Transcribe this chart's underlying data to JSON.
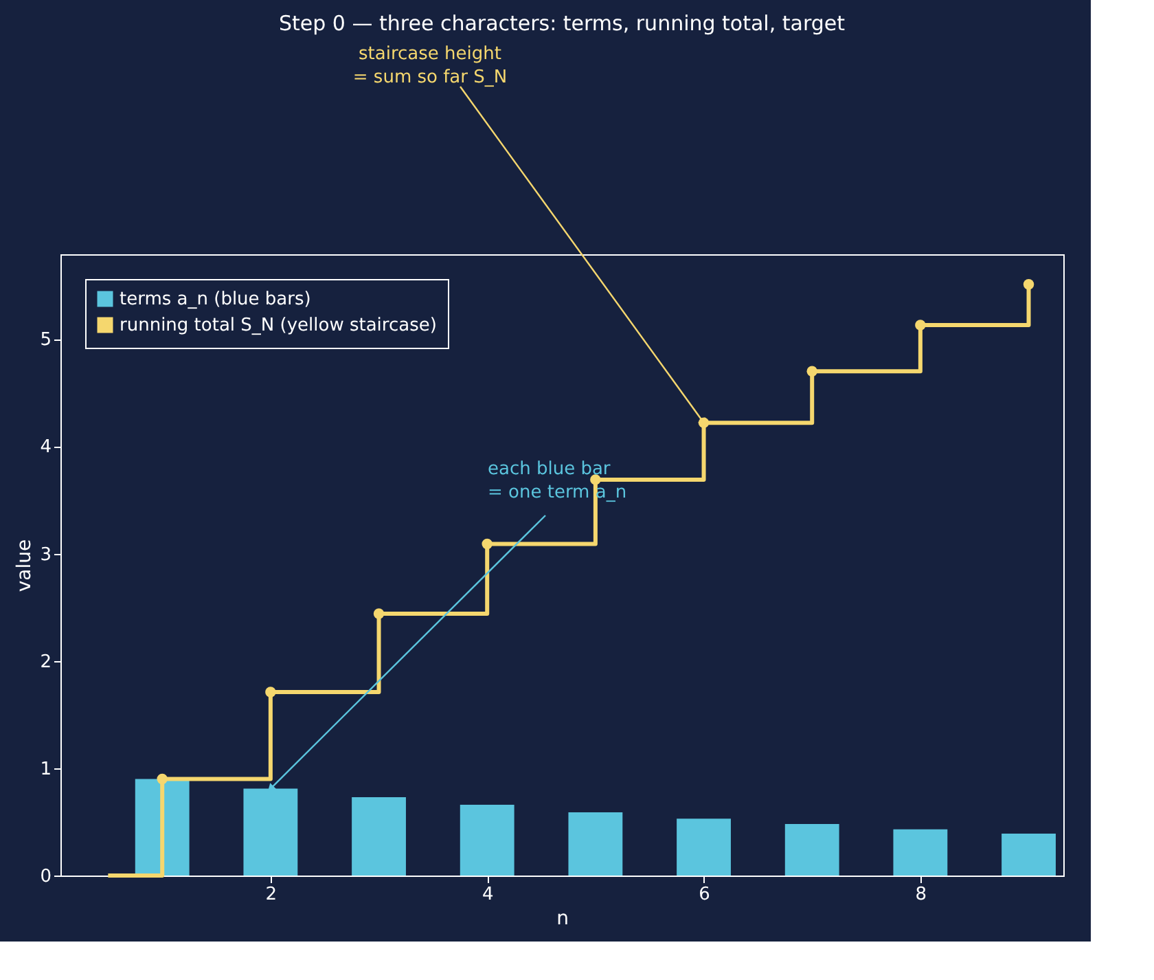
{
  "chart_data": {
    "type": "bar",
    "title": "Step 0 — three characters: terms, running total, target",
    "xlabel": "n",
    "ylabel": "value",
    "xlim": [
      0.06,
      9.32
    ],
    "xticks": [
      2,
      4,
      6,
      8
    ],
    "ylim": [
      0,
      5.79
    ],
    "yticks": [
      0,
      1,
      2,
      3,
      4,
      5
    ],
    "grid": false,
    "legend": "top left",
    "series": [
      {
        "name": "terms a_n (blue bars)",
        "color": "#5bc5de",
        "x": [
          1,
          2,
          3,
          4,
          5,
          6,
          7,
          8,
          9
        ],
        "values": [
          0.9,
          0.81,
          0.73,
          0.66,
          0.59,
          0.53,
          0.48,
          0.43,
          0.39
        ]
      },
      {
        "name": "running total S_N (yellow staircase)",
        "type": "step",
        "color": "#f5d76e",
        "marker": "none",
        "x": [
          0.5,
          1,
          2,
          3,
          4,
          5,
          6,
          7,
          8,
          9
        ],
        "values": [
          0,
          0.9,
          1.71,
          2.44,
          3.09,
          3.69,
          4.22,
          4.7,
          5.13,
          5.51
        ]
      },
      {
        "type": "scatter",
        "color": "#f5d76e",
        "marker": "circle",
        "x": [
          1,
          2,
          3,
          4,
          5,
          6,
          7,
          8,
          9
        ],
        "values": [
          0.9,
          1.71,
          2.44,
          3.09,
          3.69,
          4.22,
          4.7,
          5.13,
          5.51
        ]
      }
    ],
    "annotations": [
      {
        "text": "staircase height\n= sum so far S_N",
        "x": 6,
        "y": 4.22
      },
      {
        "text": "each blue bar\n= one term a_n",
        "x": 2,
        "y": 0.81
      }
    ]
  }
}
